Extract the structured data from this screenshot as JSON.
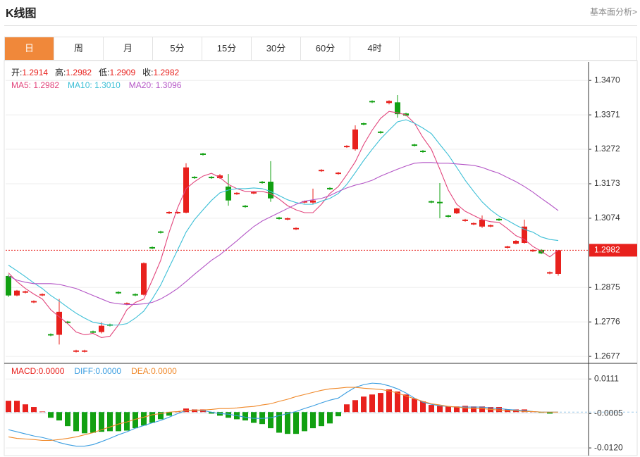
{
  "header": {
    "title": "K线图",
    "link": "基本面分析>"
  },
  "tabs": [
    "日",
    "周",
    "月",
    "5分",
    "15分",
    "30分",
    "60分",
    "4时"
  ],
  "active_tab": 0,
  "chart_data": [
    {
      "type": "candlestick",
      "ohlc_info": [
        {
          "label": "开:",
          "value": "1.2914"
        },
        {
          "label": "高:",
          "value": "1.2982"
        },
        {
          "label": "低:",
          "value": "1.2909"
        },
        {
          "label": "收:",
          "value": "1.2982"
        }
      ],
      "open": [
        1.2908,
        1.2852,
        1.286,
        1.2832,
        1.2852,
        1.2741,
        1.2739,
        1.2777,
        1.269,
        1.269,
        1.2749,
        1.2747,
        1.2769,
        1.2862,
        1.2826,
        1.2856,
        1.2854,
        1.2991,
        1.3036,
        1.3088,
        1.3088,
        1.309,
        1.3193,
        1.326,
        1.3193,
        1.3189,
        1.3165,
        1.3143,
        1.311,
        1.3145,
        1.3179,
        1.3179,
        1.3076,
        1.307,
        1.3042,
        1.3119,
        1.3119,
        1.3209,
        1.3161,
        1.3201,
        1.3278,
        1.3272,
        1.3347,
        1.3411,
        1.3323,
        1.3405,
        1.3407,
        1.3375,
        1.3286,
        1.3268,
        1.3123,
        1.3121,
        1.3082,
        1.3088,
        1.3066,
        1.3056,
        1.305,
        1.305,
        1.3072,
        1.2989,
        1.3001,
        1.3003,
        1.2979,
        1.2983,
        1.2915,
        1.2914
      ],
      "high": [
        1.2913,
        1.2868,
        1.2866,
        1.2838,
        1.2858,
        1.2743,
        1.2842,
        1.2779,
        1.2696,
        1.2696,
        1.2751,
        1.2775,
        1.2771,
        1.2864,
        1.2832,
        1.2858,
        1.2947,
        1.2993,
        1.3038,
        1.3094,
        1.3094,
        1.3232,
        1.3195,
        1.3262,
        1.3195,
        1.3201,
        1.3201,
        1.3149,
        1.3112,
        1.3151,
        1.3181,
        1.3238,
        1.3078,
        1.3076,
        1.3048,
        1.3125,
        1.3159,
        1.3215,
        1.3163,
        1.3207,
        1.3284,
        1.3341,
        1.3349,
        1.3413,
        1.3325,
        1.3413,
        1.3428,
        1.3377,
        1.3288,
        1.327,
        1.3125,
        1.3175,
        1.3084,
        1.3104,
        1.3072,
        1.3062,
        1.3082,
        1.3056,
        1.3074,
        1.2995,
        1.3011,
        1.307,
        1.2985,
        1.2985,
        1.2921,
        1.2982
      ],
      "low": [
        1.2848,
        1.285,
        1.2858,
        1.283,
        1.285,
        1.2735,
        1.2711,
        1.2771,
        1.2688,
        1.2688,
        1.2743,
        1.2743,
        1.2763,
        1.2856,
        1.2824,
        1.285,
        1.2852,
        1.2985,
        1.303,
        1.3086,
        1.3086,
        1.3088,
        1.3187,
        1.3254,
        1.3187,
        1.3187,
        1.311,
        1.3141,
        1.3104,
        1.3143,
        1.3173,
        1.3121,
        1.307,
        1.3068,
        1.304,
        1.3117,
        1.3114,
        1.3207,
        1.3155,
        1.3199,
        1.3276,
        1.3268,
        1.3341,
        1.3405,
        1.3317,
        1.3401,
        1.3363,
        1.3367,
        1.328,
        1.3262,
        1.3117,
        1.3074,
        1.3076,
        1.3086,
        1.3064,
        1.3054,
        1.3046,
        1.3048,
        1.3066,
        1.2987,
        1.2999,
        1.3001,
        1.2977,
        1.2971,
        1.2913,
        1.2909
      ],
      "close": [
        1.2852,
        1.2866,
        1.2864,
        1.2836,
        1.2856,
        1.2737,
        1.2805,
        1.2773,
        1.2694,
        1.2694,
        1.2745,
        1.2765,
        1.2765,
        1.2858,
        1.283,
        1.2852,
        1.2945,
        1.2987,
        1.3032,
        1.3092,
        1.3092,
        1.322,
        1.3189,
        1.3256,
        1.3189,
        1.3197,
        1.3125,
        1.3147,
        1.3106,
        1.3149,
        1.3175,
        1.3131,
        1.3072,
        1.3074,
        1.3046,
        1.3123,
        1.3125,
        1.3213,
        1.3157,
        1.3205,
        1.3282,
        1.3329,
        1.3343,
        1.3407,
        1.3319,
        1.3411,
        1.3373,
        1.3369,
        1.3282,
        1.3264,
        1.3119,
        1.3117,
        1.3078,
        1.3102,
        1.307,
        1.306,
        1.307,
        1.3054,
        1.3068,
        1.2993,
        1.3009,
        1.305,
        1.2983,
        1.2973,
        1.2919,
        1.2982
      ],
      "up_color": "#e8211d",
      "down_color": "#12a012",
      "series": [
        {
          "legend": "MA5: 1.2982",
          "color": "#e2457c",
          "values": [
            1.2917,
            1.2892,
            1.2872,
            1.2856,
            1.2842,
            1.2811,
            1.2791,
            1.2771,
            1.2747,
            1.2739,
            1.2743,
            1.2731,
            1.2735,
            1.2767,
            1.2811,
            1.2832,
            1.2842,
            1.2896,
            1.2953,
            1.3034,
            1.3104,
            1.3159,
            1.3179,
            1.3195,
            1.3203,
            1.3191,
            1.3171,
            1.3159,
            1.3151,
            1.3151,
            1.3151,
            1.3145,
            1.3129,
            1.311,
            1.3098,
            1.309,
            1.309,
            1.3114,
            1.3145,
            1.3165,
            1.3199,
            1.3236,
            1.3286,
            1.3327,
            1.3361,
            1.3381,
            1.3377,
            1.3371,
            1.3347,
            1.3306,
            1.3272,
            1.3215,
            1.3155,
            1.3114,
            1.3094,
            1.3082,
            1.307,
            1.3064,
            1.3062,
            1.3044,
            1.3024,
            1.3013,
            1.2993,
            1.2979,
            1.2963,
            1.2982
          ]
        },
        {
          "legend": "MA10: 1.3010",
          "color": "#3cbfd6",
          "values": [
            1.2939,
            1.2923,
            1.2906,
            1.2888,
            1.2872,
            1.2852,
            1.2836,
            1.2818,
            1.2801,
            1.2787,
            1.2775,
            1.2771,
            1.2767,
            1.2767,
            1.2771,
            1.2787,
            1.2807,
            1.2842,
            1.2882,
            1.2933,
            1.2983,
            1.3034,
            1.307,
            1.3098,
            1.3125,
            1.3147,
            1.3155,
            1.3159,
            1.3159,
            1.3161,
            1.3159,
            1.3151,
            1.3139,
            1.3127,
            1.3119,
            1.3114,
            1.3114,
            1.3123,
            1.3131,
            1.3145,
            1.3171,
            1.3205,
            1.324,
            1.3272,
            1.3302,
            1.3327,
            1.3351,
            1.3357,
            1.3347,
            1.3333,
            1.3317,
            1.3286,
            1.3256,
            1.322,
            1.3183,
            1.3151,
            1.3121,
            1.3098,
            1.308,
            1.3068,
            1.3054,
            1.3042,
            1.3034,
            1.302,
            1.3013,
            1.301
          ]
        },
        {
          "legend": "MA20: 1.3096",
          "color": "#b456c6",
          "values": [
            1.2908,
            1.2896,
            1.289,
            1.2886,
            1.2886,
            1.2886,
            1.2884,
            1.2878,
            1.2872,
            1.2862,
            1.2852,
            1.2842,
            1.2832,
            1.2828,
            1.2826,
            1.2826,
            1.2828,
            1.2832,
            1.2842,
            1.2856,
            1.2872,
            1.2892,
            1.2913,
            1.2933,
            1.2953,
            1.2969,
            1.2989,
            1.3009,
            1.303,
            1.305,
            1.3066,
            1.3078,
            1.309,
            1.3102,
            1.3114,
            1.3123,
            1.3127,
            1.3131,
            1.3139,
            1.3151,
            1.3161,
            1.3169,
            1.3175,
            1.3183,
            1.3195,
            1.3205,
            1.3215,
            1.3224,
            1.3232,
            1.3234,
            1.3234,
            1.3232,
            1.3232,
            1.323,
            1.3228,
            1.3226,
            1.322,
            1.3211,
            1.3203,
            1.3191,
            1.3179,
            1.3165,
            1.3149,
            1.3131,
            1.3114,
            1.3096
          ]
        }
      ],
      "last_price": 1.2982,
      "ylim": [
        1.2659,
        1.3523
      ],
      "yticks": [
        {
          "value": 1.347,
          "label": "1.3470"
        },
        1.3371,
        1.3272,
        1.3173,
        1.3074,
        1.2875,
        1.2776,
        1.2677
      ],
      "grid": true
    },
    {
      "type": "macd",
      "up_color": "#e8211d",
      "down_color": "#12a012",
      "series": [
        {
          "legend": "MACD:0.0000",
          "color": "#e8211d",
          "style": "bar",
          "values": [
            0.0038,
            0.0038,
            0.0026,
            0.0017,
            0.0002,
            -0.0019,
            -0.0028,
            -0.0047,
            -0.0064,
            -0.0071,
            -0.0069,
            -0.0066,
            -0.0064,
            -0.0064,
            -0.0062,
            -0.0054,
            -0.0045,
            -0.0036,
            -0.0024,
            -0.0012,
            0.0002,
            0.0012,
            0.0009,
            0.0009,
            -0.0005,
            -0.0012,
            -0.0019,
            -0.0024,
            -0.0028,
            -0.0036,
            -0.004,
            -0.0054,
            -0.0069,
            -0.0073,
            -0.0073,
            -0.0064,
            -0.0054,
            -0.0047,
            -0.0038,
            -0.0014,
            0.0026,
            0.004,
            0.0052,
            0.0059,
            0.0064,
            0.0076,
            0.0069,
            0.0059,
            0.0045,
            0.0036,
            0.0024,
            0.0021,
            0.0019,
            0.0019,
            0.0021,
            0.0019,
            0.0019,
            0.0017,
            0.0017,
            0.0009,
            0.0009,
            0.0009,
            0.0002,
            -0.0002,
            -0.0005,
            0
          ]
        },
        {
          "legend": "DIFF:0.0000",
          "color": "#3a9de0",
          "style": "line",
          "values": [
            -0.0059,
            -0.0066,
            -0.0073,
            -0.008,
            -0.0085,
            -0.0092,
            -0.0102,
            -0.0109,
            -0.0114,
            -0.0114,
            -0.0109,
            -0.0099,
            -0.0088,
            -0.0076,
            -0.0066,
            -0.0054,
            -0.0045,
            -0.0036,
            -0.0028,
            -0.0017,
            -0.0005,
            0.0005,
            0.0007,
            0.0005,
            0,
            -0.0005,
            -0.0007,
            -0.0012,
            -0.0017,
            -0.0021,
            -0.0021,
            -0.0019,
            -0.0012,
            -0.0005,
            0.0002,
            0.0012,
            0.0021,
            0.0031,
            0.004,
            0.0047,
            0.0066,
            0.0083,
            0.0092,
            0.0097,
            0.0095,
            0.0088,
            0.0078,
            0.0064,
            0.0047,
            0.0033,
            0.0026,
            0.0021,
            0.0019,
            0.0017,
            0.0017,
            0.0017,
            0.0017,
            0.0014,
            0.0012,
            0.0009,
            0.0007,
            0.0005,
            0.0002,
            0,
            0,
            0
          ]
        },
        {
          "legend": "DEA:0.0000",
          "color": "#f0892a",
          "style": "line",
          "values": [
            -0.0083,
            -0.0088,
            -0.009,
            -0.0092,
            -0.0095,
            -0.0095,
            -0.0092,
            -0.0088,
            -0.0083,
            -0.0076,
            -0.0069,
            -0.0059,
            -0.005,
            -0.004,
            -0.0033,
            -0.0024,
            -0.0017,
            -0.0009,
            -0.0005,
            0,
            0.0002,
            0.0005,
            0.0007,
            0.0007,
            0.0009,
            0.0012,
            0.0012,
            0.0014,
            0.0017,
            0.0019,
            0.0024,
            0.0028,
            0.0036,
            0.0043,
            0.0052,
            0.0059,
            0.0066,
            0.0073,
            0.0078,
            0.008,
            0.0083,
            0.0083,
            0.008,
            0.0078,
            0.0076,
            0.0071,
            0.0064,
            0.0054,
            0.0045,
            0.0036,
            0.0028,
            0.0024,
            0.0019,
            0.0017,
            0.0014,
            0.0012,
            0.0012,
            0.0009,
            0.0007,
            0.0005,
            0.0005,
            0.0002,
            0.0002,
            0,
            0,
            0
          ]
        }
      ],
      "ylim": [
        -0.0141,
        0.0161
      ],
      "yticks": [
        0.0111,
        -0.0005,
        {
          "value": -0.012,
          "label": "-0.0120"
        }
      ],
      "grid": true
    }
  ]
}
